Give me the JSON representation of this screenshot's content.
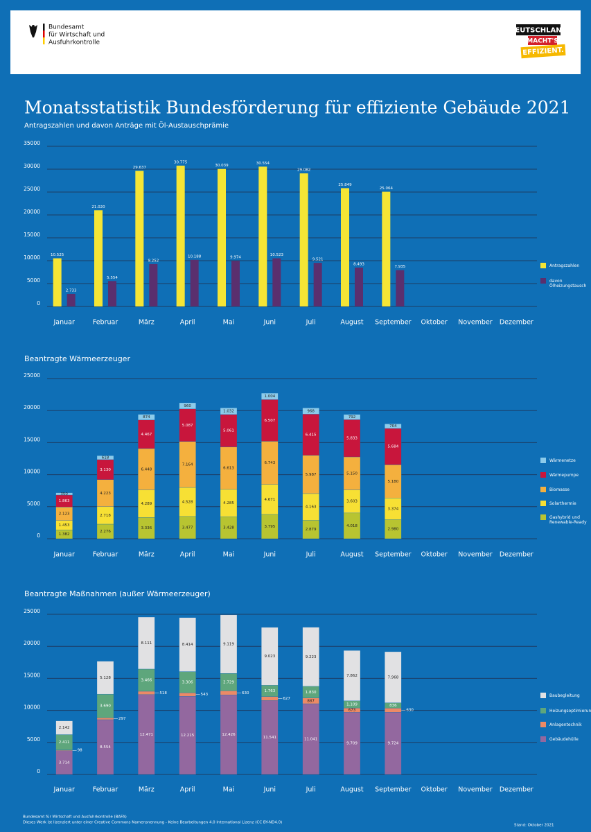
{
  "header": {
    "agency": [
      "Bundesamt",
      "für Wirtschaft und",
      "Ausfuhrkontrolle"
    ],
    "campaign": [
      "DEUTSCHLAND",
      "MACHT'S",
      "EFFIZIENT."
    ]
  },
  "title": "Monatsstatistik Bundesförderung für effiziente Gebäude 2021",
  "footer": {
    "lines": [
      "Bundesamt für Wirtschaft und Ausfuhrkontrolle (BAFA)",
      "Dieses Werk ist lizenziert unter einer Creative Commons Namensnennung - Keine Bearbeitungen 4.0 International Lizenz (CC BY-ND4.0)"
    ],
    "date": "Stand: Oktober 2021"
  },
  "chart_data": [
    {
      "type": "bar",
      "title": "Antragszahlen und davon Anträge mit Öl-Austauschprämie",
      "categories": [
        "Januar",
        "Februar",
        "März",
        "April",
        "Mai",
        "Juni",
        "Juli",
        "August",
        "September",
        "Oktober",
        "November",
        "Dezember"
      ],
      "ylim": [
        0,
        35000
      ],
      "yticks": [
        0,
        5000,
        10000,
        15000,
        20000,
        25000,
        30000,
        35000
      ],
      "grid": true,
      "series": [
        {
          "name": "Antragszahlen",
          "color": "#f5e535",
          "values": [
            10525,
            21020,
            29637,
            30775,
            30039,
            30554,
            29082,
            25849,
            25064,
            null,
            null,
            null
          ],
          "value_labels": [
            "10.525",
            "21.020",
            "29.637",
            "30.775",
            "30.039",
            "30.554",
            "29.082",
            "25.849",
            "25.064",
            null,
            null,
            null
          ]
        },
        {
          "name": "davon Ölheizungstausch",
          "color": "#5a2f6e",
          "values": [
            2733,
            5554,
            9252,
            10188,
            9974,
            10523,
            9521,
            8493,
            7935,
            null,
            null,
            null
          ],
          "value_labels": [
            "2.733",
            "5.554",
            "9.252",
            "10.188",
            "9.974",
            "10.523",
            "9.521",
            "8.493",
            "7.935",
            null,
            null,
            null
          ]
        }
      ]
    },
    {
      "type": "stacked_bar",
      "title": "Beantragte Wärmeerzeuger",
      "categories": [
        "Januar",
        "Februar",
        "März",
        "April",
        "Mai",
        "Juni",
        "Juli",
        "August",
        "September",
        "Oktober",
        "November",
        "Dezember"
      ],
      "ylim": [
        0,
        25000
      ],
      "yticks": [
        0,
        5000,
        10000,
        15000,
        20000,
        25000
      ],
      "grid": true,
      "series": [
        {
          "name": "Gashybrid und Renewable-Ready",
          "color": "#b8c431",
          "values": [
            1382,
            2276,
            3336,
            3477,
            3428,
            3795,
            2879,
            4018,
            2980,
            null,
            null,
            null
          ],
          "value_labels": [
            "1.382",
            "2.276",
            "3.336",
            "3.477",
            "3.428",
            "3.795",
            "2.879",
            "4.018",
            "2.980",
            null,
            null,
            null
          ]
        },
        {
          "name": "Solarthermie",
          "color": "#f7e034",
          "values": [
            1453,
            2718,
            4289,
            4528,
            4285,
            4671,
            4163,
            3603,
            3374,
            null,
            null,
            null
          ],
          "value_labels": [
            "1.453",
            "2.718",
            "4.289",
            "4.528",
            "4.285",
            "4.671",
            "4.163",
            "3.603",
            "3.374",
            null,
            null,
            null
          ]
        },
        {
          "name": "Biomasse",
          "color": "#f4b03e",
          "values": [
            2123,
            4223,
            6448,
            7164,
            6613,
            6743,
            5987,
            5150,
            5180,
            null,
            null,
            null
          ],
          "value_labels": [
            "2.123",
            "4.223",
            "6.448",
            "7.164",
            "6.613",
            "6.743",
            "5.987",
            "5.150",
            "5.180",
            null,
            null,
            null
          ]
        },
        {
          "name": "Wärmepumpe",
          "color": "#c8163c",
          "values": [
            1863,
            3130,
            4467,
            5087,
            5061,
            6507,
            6415,
            5833,
            5684,
            null,
            null,
            null
          ],
          "value_labels": [
            "1.863",
            "3.130",
            "4.467",
            "5.087",
            "5.061",
            "6.507",
            "6.415",
            "5.833",
            "5.684",
            null,
            null,
            null
          ]
        },
        {
          "name": "Wärmenetze",
          "color": "#8ccbea",
          "values": [
            350,
            618,
            874,
            960,
            1032,
            1004,
            968,
            792,
            704,
            null,
            null,
            null
          ],
          "value_labels": [
            "350",
            "618",
            "874",
            "960",
            "1.032",
            "1.004",
            "968",
            "792",
            "704",
            null,
            null,
            null
          ]
        }
      ]
    },
    {
      "type": "stacked_bar",
      "title": "Beantragte Maßnahmen (außer Wärmeerzeuger)",
      "categories": [
        "Januar",
        "Februar",
        "März",
        "April",
        "Mai",
        "Juni",
        "Juli",
        "August",
        "September",
        "Oktober",
        "November",
        "Dezember"
      ],
      "ylim": [
        0,
        25000
      ],
      "yticks": [
        0,
        5000,
        10000,
        15000,
        20000,
        25000
      ],
      "grid": true,
      "series": [
        {
          "name": "Gebäudehülle",
          "color": "#93689f",
          "values": [
            3714,
            8554,
            12471,
            12215,
            12426,
            11541,
            11041,
            9709,
            9724,
            null,
            null,
            null
          ],
          "value_labels": [
            "3.714",
            "8.554",
            "12.471",
            "12.215",
            "12.426",
            "11.541",
            "11.041",
            "9.709",
            "9.724",
            null,
            null,
            null
          ]
        },
        {
          "name": "Anlagentechnik",
          "color": "#ec8a66",
          "values": [
            98,
            297,
            518,
            543,
            630,
            627,
            887,
            673,
            630,
            null,
            null,
            null
          ],
          "value_labels": [
            "98",
            "297",
            "518",
            "543",
            "630",
            "627",
            "887",
            "673",
            "630",
            null,
            null,
            null
          ]
        },
        {
          "name": "Heizungsoptimierung",
          "color": "#5ea67c",
          "values": [
            2411,
            3690,
            3466,
            3306,
            2729,
            1763,
            1830,
            1109,
            836,
            null,
            null,
            null
          ],
          "value_labels": [
            "2.411",
            "3.690",
            "3.466",
            "3.306",
            "2.729",
            "1.763",
            "1.830",
            "1.109",
            "836",
            null,
            null,
            null
          ]
        },
        {
          "name": "Baubegleitung",
          "color": "#e1e1e3",
          "values": [
            2142,
            5128,
            8111,
            8414,
            9119,
            9023,
            9223,
            7862,
            7968,
            null,
            null,
            null
          ],
          "value_labels": [
            "2.142",
            "5.128",
            "8.111",
            "8.414",
            "9.119",
            "9.023",
            "9.223",
            "7.862",
            "7.968",
            null,
            null,
            null
          ]
        }
      ]
    }
  ]
}
